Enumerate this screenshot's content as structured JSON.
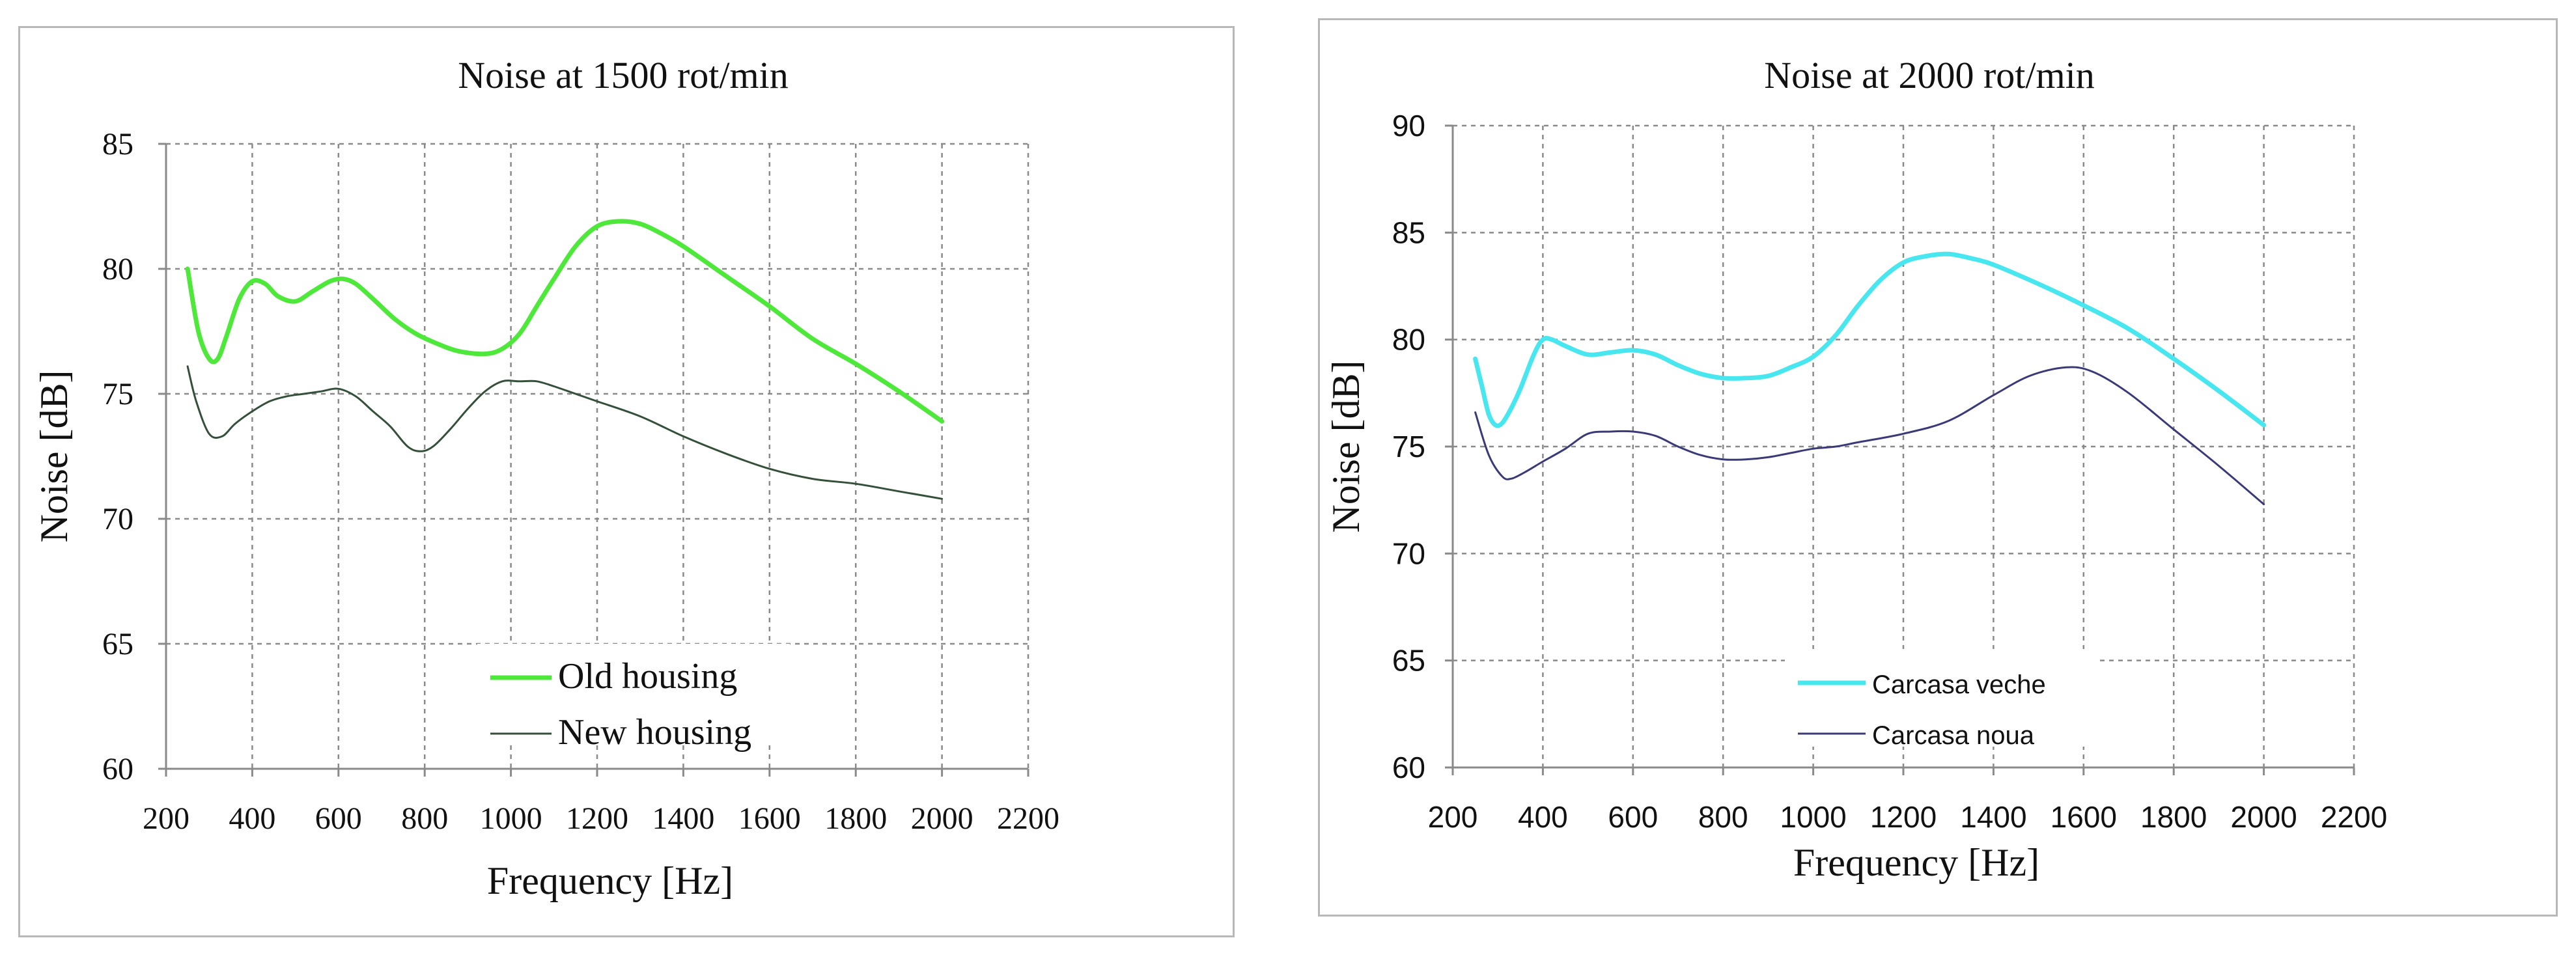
{
  "chart_data": [
    {
      "type": "line",
      "title": "Noise at 1500 rot/min",
      "xlabel": "Frequency [Hz]",
      "ylabel": "Noise [dB]",
      "xlim": [
        200,
        2200
      ],
      "ylim": [
        60,
        85
      ],
      "xticks": [
        "200",
        "400",
        "600",
        "800",
        "1000",
        "1200",
        "1400",
        "1600",
        "1800",
        "2000",
        "2200"
      ],
      "yticks": [
        "60",
        "65",
        "70",
        "75",
        "80",
        "85"
      ],
      "grid": true,
      "legend_position": "bottom-center",
      "series": [
        {
          "name": "Old housing",
          "color": "#4ee83a",
          "x": [
            250,
            275,
            300,
            320,
            340,
            370,
            400,
            430,
            460,
            500,
            540,
            580,
            610,
            640,
            680,
            730,
            780,
            830,
            880,
            940,
            980,
            1020,
            1060,
            1100,
            1150,
            1200,
            1250,
            1300,
            1350,
            1400,
            1500,
            1600,
            1700,
            1800,
            1900,
            2000
          ],
          "y": [
            80.0,
            77.5,
            76.4,
            76.4,
            77.3,
            78.8,
            79.5,
            79.4,
            78.9,
            78.7,
            79.1,
            79.5,
            79.6,
            79.4,
            78.8,
            78.0,
            77.4,
            77.0,
            76.7,
            76.6,
            76.8,
            77.4,
            78.5,
            79.6,
            80.9,
            81.7,
            81.9,
            81.8,
            81.4,
            80.9,
            79.7,
            78.5,
            77.2,
            76.2,
            75.1,
            73.9
          ]
        },
        {
          "name": "New housing",
          "color": "#35503a",
          "x": [
            250,
            270,
            300,
            330,
            360,
            400,
            440,
            480,
            520,
            560,
            600,
            640,
            680,
            720,
            760,
            790,
            820,
            860,
            900,
            940,
            980,
            1020,
            1060,
            1100,
            1150,
            1200,
            1300,
            1400,
            1500,
            1600,
            1700,
            1800,
            1900,
            2000
          ],
          "y": [
            76.1,
            74.7,
            73.4,
            73.3,
            73.8,
            74.3,
            74.7,
            74.9,
            75.0,
            75.1,
            75.2,
            74.9,
            74.3,
            73.7,
            72.9,
            72.7,
            72.9,
            73.6,
            74.4,
            75.1,
            75.5,
            75.5,
            75.5,
            75.3,
            75.0,
            74.7,
            74.1,
            73.3,
            72.6,
            72.0,
            71.6,
            71.4,
            71.1,
            70.8
          ]
        }
      ]
    },
    {
      "type": "line",
      "title": "Noise at 2000 rot/min",
      "xlabel": "Frequency [Hz]",
      "ylabel": "Noise [dB]",
      "xlim": [
        200,
        2200
      ],
      "ylim": [
        60,
        90
      ],
      "xticks": [
        "200",
        "400",
        "600",
        "800",
        "1000",
        "1200",
        "1400",
        "1600",
        "1800",
        "2000",
        "2200"
      ],
      "yticks": [
        "60",
        "65",
        "70",
        "75",
        "80",
        "85",
        "90"
      ],
      "grid": true,
      "legend_position": "bottom-center",
      "series": [
        {
          "name": "Carcasa veche",
          "color": "#48e6ee",
          "x": [
            250,
            265,
            280,
            295,
            310,
            330,
            350,
            380,
            400,
            420,
            450,
            500,
            550,
            600,
            650,
            700,
            750,
            800,
            850,
            900,
            950,
            1000,
            1050,
            1100,
            1150,
            1200,
            1250,
            1300,
            1350,
            1400,
            1500,
            1600,
            1700,
            1800,
            1900,
            2000
          ],
          "y": [
            79.1,
            77.8,
            76.5,
            76.0,
            76.1,
            76.8,
            77.7,
            79.3,
            80.0,
            80.0,
            79.7,
            79.3,
            79.4,
            79.5,
            79.3,
            78.8,
            78.4,
            78.2,
            78.2,
            78.3,
            78.7,
            79.2,
            80.2,
            81.6,
            82.8,
            83.6,
            83.9,
            84.0,
            83.8,
            83.5,
            82.6,
            81.6,
            80.5,
            79.1,
            77.6,
            76.0
          ]
        },
        {
          "name": "Carcasa noua",
          "color": "#3b3a78",
          "x": [
            250,
            280,
            310,
            330,
            360,
            400,
            450,
            500,
            550,
            600,
            650,
            700,
            750,
            800,
            850,
            900,
            950,
            1000,
            1050,
            1100,
            1200,
            1300,
            1400,
            1480,
            1560,
            1620,
            1700,
            1800,
            1900,
            2000
          ],
          "y": [
            76.6,
            74.6,
            73.6,
            73.5,
            73.8,
            74.3,
            74.9,
            75.6,
            75.7,
            75.7,
            75.5,
            75.0,
            74.6,
            74.4,
            74.4,
            74.5,
            74.7,
            74.9,
            75.0,
            75.2,
            75.6,
            76.2,
            77.4,
            78.3,
            78.7,
            78.5,
            77.5,
            75.8,
            74.1,
            72.3
          ]
        }
      ]
    }
  ]
}
